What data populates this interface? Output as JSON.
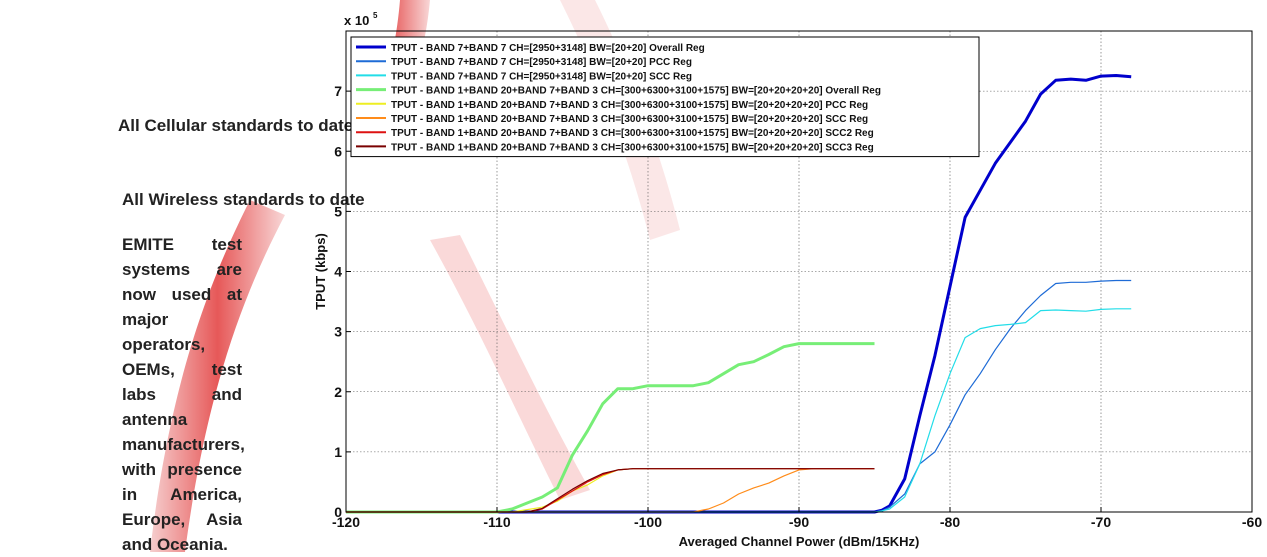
{
  "left_panel": {
    "line1": "All Cellular standards to date",
    "line2": "All Wireless standards to date",
    "paragraph": "EMITE test systems are now used at major operators, OEMs, test labs and antenna manufacturers, with presence in America, Europe, Asia and Oceania."
  },
  "chart_data": {
    "type": "line",
    "title": "",
    "xlabel": "Averaged Channel Power (dBm/15KHz)",
    "ylabel": "TPUT (kbps)",
    "y_multiplier_label": "x 10",
    "y_multiplier_exp": "5",
    "xlim": [
      -120,
      -60
    ],
    "ylim": [
      0,
      8
    ],
    "xticks": [
      -120,
      -110,
      -100,
      -90,
      -80,
      -70,
      -60
    ],
    "yticks": [
      0,
      1,
      2,
      3,
      4,
      5,
      6,
      7
    ],
    "grid": true,
    "legend_position": "top-left",
    "series": [
      {
        "name": "TPUT - BAND 7+BAND 7 CH=[2950+3148] BW=[20+20] Overall Reg",
        "color": "#0000cc",
        "width": 3,
        "x": [
          -120,
          -85,
          -84.5,
          -84,
          -83,
          -82,
          -81,
          -80,
          -79,
          -78,
          -77,
          -76,
          -75,
          -74,
          -73,
          -72,
          -71,
          -70,
          -69,
          -68
        ],
        "y": [
          0,
          0,
          0.03,
          0.1,
          0.55,
          1.6,
          2.6,
          3.75,
          4.9,
          5.35,
          5.8,
          6.15,
          6.5,
          6.95,
          7.18,
          7.2,
          7.18,
          7.25,
          7.26,
          7.24
        ]
      },
      {
        "name": "TPUT - BAND 7+BAND 7 CH=[2950+3148] BW=[20+20] PCC Reg",
        "color": "#1e6bd6",
        "width": 1.2,
        "x": [
          -120,
          -85,
          -84.5,
          -84,
          -83,
          -82,
          -81,
          -80,
          -79,
          -78,
          -77,
          -76,
          -75,
          -74,
          -73,
          -72,
          -71,
          -70,
          -69,
          -68
        ],
        "y": [
          0,
          0,
          0.02,
          0.08,
          0.3,
          0.8,
          1.0,
          1.45,
          1.95,
          2.3,
          2.7,
          3.05,
          3.35,
          3.6,
          3.8,
          3.82,
          3.82,
          3.84,
          3.85,
          3.85
        ]
      },
      {
        "name": "TPUT - BAND 7+BAND 7 CH=[2950+3148] BW=[20+20] SCC Reg",
        "color": "#22dde8",
        "width": 1.2,
        "x": [
          -120,
          -85,
          -84.5,
          -84,
          -83,
          -82,
          -81,
          -80,
          -79,
          -78,
          -77,
          -76,
          -75,
          -74,
          -73,
          -72,
          -71,
          -70,
          -69,
          -68
        ],
        "y": [
          0,
          0,
          0.02,
          0.05,
          0.25,
          0.8,
          1.6,
          2.3,
          2.9,
          3.05,
          3.1,
          3.12,
          3.15,
          3.35,
          3.36,
          3.35,
          3.34,
          3.37,
          3.38,
          3.38
        ]
      },
      {
        "name": "TPUT - BAND 1+BAND 20+BAND 7+BAND 3 CH=[300+6300+3100+1575] BW=[20+20+20+20] Overall Reg",
        "color": "#77ee77",
        "width": 3,
        "x": [
          -120,
          -110,
          -109,
          -108,
          -107,
          -106,
          -105,
          -104,
          -103,
          -102,
          -101,
          -100,
          -99,
          -98,
          -97,
          -96,
          -95,
          -94,
          -93,
          -92,
          -91,
          -90,
          -89,
          -88,
          -87,
          -86,
          -85
        ],
        "y": [
          0,
          0,
          0.05,
          0.15,
          0.25,
          0.4,
          0.95,
          1.35,
          1.8,
          2.05,
          2.05,
          2.1,
          2.1,
          2.1,
          2.1,
          2.15,
          2.3,
          2.45,
          2.5,
          2.62,
          2.75,
          2.8,
          2.8,
          2.8,
          2.8,
          2.8,
          2.8
        ]
      },
      {
        "name": "TPUT - BAND 1+BAND 20+BAND 7+BAND 3 CH=[300+6300+3100+1575] BW=[20+20+20+20] PCC Reg",
        "color": "#eeee22",
        "width": 1.2,
        "x": [
          -120,
          -109,
          -108,
          -107,
          -106,
          -105,
          -104,
          -103,
          -102,
          -101,
          -100,
          -85
        ],
        "y": [
          0,
          0,
          0.04,
          0.08,
          0.18,
          0.35,
          0.45,
          0.6,
          0.7,
          0.72,
          0.72,
          0.72
        ]
      },
      {
        "name": "TPUT - BAND 1+BAND 20+BAND 7+BAND 3 CH=[300+6300+3100+1575] BW=[20+20+20+20] SCC Reg",
        "color": "#ff8c1a",
        "width": 1.2,
        "x": [
          -120,
          -97,
          -96,
          -95,
          -94,
          -93,
          -92,
          -91,
          -90,
          -89,
          -88,
          -85
        ],
        "y": [
          0,
          0,
          0.05,
          0.15,
          0.3,
          0.4,
          0.48,
          0.6,
          0.7,
          0.72,
          0.72,
          0.72
        ]
      },
      {
        "name": "TPUT - BAND 1+BAND 20+BAND 7+BAND 3 CH=[300+6300+3100+1575] BW=[20+20+20+20] SCC2 Reg",
        "color": "#dd1111",
        "width": 1.2,
        "x": [
          -120,
          -108,
          -107,
          -106,
          -105,
          -104,
          -103,
          -102,
          -101,
          -100,
          -85
        ],
        "y": [
          0,
          0,
          0.05,
          0.2,
          0.35,
          0.5,
          0.62,
          0.7,
          0.72,
          0.72,
          0.72
        ]
      },
      {
        "name": "TPUT - BAND 1+BAND 20+BAND 7+BAND 3 CH=[300+6300+3100+1575] BW=[20+20+20+20] SCC3 Reg",
        "color": "#7a0000",
        "width": 1.2,
        "x": [
          -120,
          -108,
          -107,
          -106,
          -105,
          -104,
          -103,
          -102,
          -101,
          -100,
          -85
        ],
        "y": [
          0,
          0,
          0.06,
          0.22,
          0.38,
          0.52,
          0.64,
          0.7,
          0.72,
          0.72,
          0.72
        ]
      }
    ]
  }
}
